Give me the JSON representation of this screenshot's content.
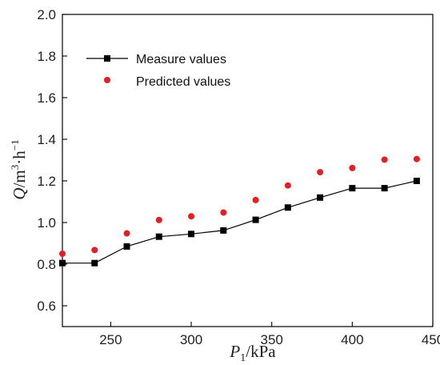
{
  "chart_data": {
    "type": "line",
    "title": "",
    "xlabel_parts": [
      "P",
      "1",
      "/kPa"
    ],
    "ylabel_parts": [
      "Q",
      "/m",
      "3",
      "·h",
      "−1"
    ],
    "xlim": [
      220,
      450
    ],
    "ylim": [
      0.5,
      2.0
    ],
    "xticks": [
      250,
      300,
      350,
      400,
      450
    ],
    "yticks": [
      0.6,
      0.8,
      1.0,
      1.2,
      1.4,
      1.6,
      1.8,
      2.0
    ],
    "ytick_labels": [
      "0.6",
      "0.8",
      "1.0",
      "1.2",
      "1.4",
      "1.6",
      "1.8",
      "2.0"
    ],
    "x": [
      220,
      240,
      260,
      280,
      300,
      320,
      340,
      360,
      380,
      400,
      420,
      440
    ],
    "series": [
      {
        "name": "Measure values",
        "style": "line-square",
        "color": "#000000",
        "values": [
          0.805,
          0.805,
          0.885,
          0.932,
          0.945,
          0.962,
          1.013,
          1.072,
          1.12,
          1.165,
          1.165,
          1.2
        ]
      },
      {
        "name": "Predicted values",
        "style": "dot",
        "color": "#e31e24",
        "values": [
          0.85,
          0.868,
          0.948,
          1.012,
          1.03,
          1.048,
          1.108,
          1.178,
          1.242,
          1.262,
          1.302,
          1.305
        ]
      }
    ],
    "grid": false,
    "legend_position": "top-left"
  }
}
